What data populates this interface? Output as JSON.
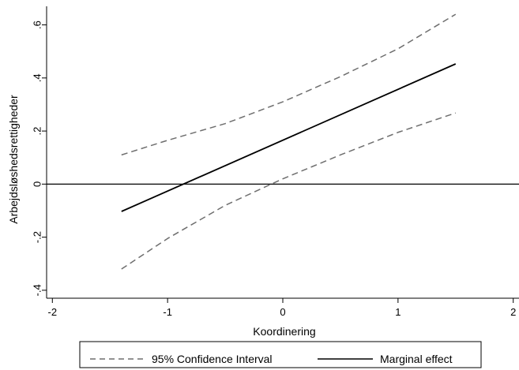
{
  "chart_data": {
    "type": "line",
    "title": "",
    "xlabel": "Koordinering",
    "ylabel": "Arbejdsløshedsrettigheder",
    "xlim": [
      -2.05,
      2.05
    ],
    "ylim": [
      -0.43,
      0.67
    ],
    "xticks": [
      -2,
      -1,
      0,
      1,
      2
    ],
    "xtick_labels": [
      "-2",
      "-1",
      "0",
      "1",
      "2"
    ],
    "yticks": [
      -0.4,
      -0.2,
      0,
      0.2,
      0.4,
      0.6
    ],
    "ytick_labels": [
      "-.4",
      "-.2",
      "0",
      ".2",
      ".4",
      ".6"
    ],
    "reference_line_y": 0,
    "grid": false,
    "legend_position": "bottom",
    "series": [
      {
        "name": "95% Confidence Interval",
        "style": "dashed",
        "color": "#6e6e6e",
        "x": [
          -1.4,
          -1.0,
          -0.5,
          0.0,
          0.5,
          1.0,
          1.5
        ],
        "y": [
          0.11,
          0.165,
          0.228,
          0.31,
          0.405,
          0.51,
          0.64
        ]
      },
      {
        "name": "95% Confidence Interval",
        "style": "dashed",
        "color": "#6e6e6e",
        "x": [
          -1.4,
          -1.0,
          -0.5,
          0.0,
          0.5,
          1.0,
          1.5
        ],
        "y": [
          -0.32,
          -0.205,
          -0.08,
          0.02,
          0.11,
          0.195,
          0.268
        ]
      },
      {
        "name": "Marginal effect",
        "style": "solid",
        "color": "#000000",
        "x": [
          -1.4,
          1.5
        ],
        "y": [
          -0.103,
          0.453
        ]
      }
    ],
    "legend": [
      {
        "label": "95% Confidence Interval",
        "style": "dashed"
      },
      {
        "label": "Marginal effect",
        "style": "solid"
      }
    ]
  }
}
